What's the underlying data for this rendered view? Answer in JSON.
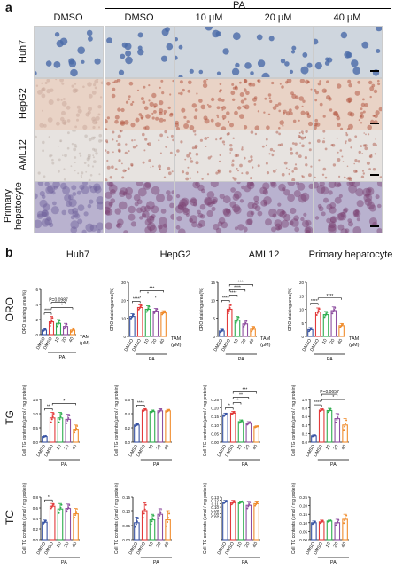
{
  "panel_a": {
    "letter": "a",
    "pa_header": "PA",
    "column_headers": [
      "DMSO",
      "DMSO",
      "10 μM",
      "20 μM",
      "40 μM"
    ],
    "row_labels": [
      "Huh7",
      "HepG2",
      "AML12",
      "Primary hepatocyte"
    ],
    "row_label_line1": "Primary",
    "row_label_line2": "hepatocyte"
  },
  "panel_b": {
    "letter": "b",
    "row_labels": [
      "ORO",
      "TG",
      "TC"
    ],
    "col_titles": [
      "Huh7",
      "HepG2",
      "AML12",
      "Primary hepatocyte"
    ],
    "tam_label": "TAM",
    "tam_unit": "(μM)",
    "pa_label": "PA"
  },
  "colors": {
    "huh7_bg": "#cfd6de",
    "hepg2_bg": "#e9d3c6",
    "aml12_bg": "#e7e3e0",
    "primary_bg": "#b9b2cf",
    "series": [
      "#3853a4",
      "#e23b3b",
      "#2fae4f",
      "#8e4fa0",
      "#f08c2c"
    ]
  },
  "chart_data": [
    {
      "type": "bar",
      "name": "oro-huh7",
      "ylabel": "ORO staining area(%)",
      "ylim": [
        0,
        6
      ],
      "yticks": [
        0,
        2,
        4,
        6
      ],
      "categories": [
        "DMSO",
        "DMSO",
        "10",
        "20",
        "40"
      ],
      "values": [
        0.6,
        1.7,
        1.5,
        1.1,
        0.6
      ],
      "errors": [
        0.2,
        0.7,
        0.5,
        0.4,
        0.3
      ],
      "sig": [
        [
          "****",
          0,
          1
        ],
        [
          "*",
          1,
          4
        ],
        [
          "P=0.0987",
          1,
          3
        ]
      ],
      "tam": true
    },
    {
      "type": "bar",
      "name": "oro-hepg2",
      "ylabel": "ORO staining area(%)",
      "ylim": [
        0,
        30
      ],
      "yticks": [
        0,
        10,
        20,
        30
      ],
      "categories": [
        "DMSO",
        "DMSO",
        "10",
        "20",
        "40"
      ],
      "values": [
        11,
        16,
        15,
        14,
        13
      ],
      "errors": [
        1.5,
        1.5,
        2,
        1.5,
        1.2
      ],
      "sig": [
        [
          "****",
          0,
          1
        ],
        [
          "*",
          1,
          3
        ],
        [
          "***",
          1,
          4
        ]
      ],
      "tam": true
    },
    {
      "type": "bar",
      "name": "oro-aml12",
      "ylabel": "ORO staining area(%)",
      "ylim": [
        0,
        15
      ],
      "yticks": [
        0,
        5,
        10,
        15
      ],
      "categories": [
        "DMSO",
        "DMSO",
        "10",
        "20",
        "40"
      ],
      "values": [
        1.5,
        7.5,
        4.5,
        3.5,
        2
      ],
      "errors": [
        0.5,
        1.5,
        1,
        1,
        0.8
      ],
      "sig": [
        [
          "****",
          0,
          1
        ],
        [
          "****",
          1,
          2
        ],
        [
          "****",
          1,
          3
        ],
        [
          "****",
          1,
          4
        ]
      ],
      "tam": true
    },
    {
      "type": "bar",
      "name": "oro-primary",
      "ylabel": "ORO staining area(%)",
      "ylim": [
        0,
        20
      ],
      "yticks": [
        0,
        5,
        10,
        15,
        20
      ],
      "categories": [
        "DMSO",
        "DMSO",
        "10",
        "20",
        "40"
      ],
      "values": [
        2.5,
        9,
        8,
        9.5,
        4
      ],
      "errors": [
        0.8,
        1.5,
        1.2,
        1.4,
        0.8
      ],
      "sig": [
        [
          "****",
          0,
          1
        ],
        [
          "****",
          1,
          4
        ]
      ],
      "tam": true
    },
    {
      "type": "bar",
      "name": "tg-huh7",
      "ylabel": "Cell TG contents (μmol / mg protein)",
      "ylim": [
        0,
        1.5
      ],
      "yticks": [
        0.0,
        0.5,
        1.0,
        1.5
      ],
      "categories": [
        "DMSO",
        "DMSO",
        "10",
        "20",
        "40"
      ],
      "values": [
        0.2,
        0.85,
        0.85,
        0.8,
        0.45
      ],
      "errors": [
        0.03,
        0.2,
        0.2,
        0.18,
        0.15
      ],
      "sig": [
        [
          "**",
          0,
          1
        ],
        [
          "*",
          1,
          4
        ]
      ]
    },
    {
      "type": "bar",
      "name": "tg-hepg2",
      "ylabel": "Cell TG contents (μmol / mg protein)",
      "ylim": [
        0,
        0.6
      ],
      "yticks": [
        0.0,
        0.2,
        0.4,
        0.6
      ],
      "categories": [
        "DMSO",
        "DMSO",
        "10",
        "20",
        "40"
      ],
      "values": [
        0.24,
        0.45,
        0.43,
        0.44,
        0.44
      ],
      "errors": [
        0.02,
        0.02,
        0.02,
        0.03,
        0.02
      ],
      "sig": [
        [
          "****",
          0,
          1
        ]
      ]
    },
    {
      "type": "bar",
      "name": "tg-aml12",
      "ylabel": "Cell TG contents (μmol / mg protein)",
      "ylim": [
        0,
        0.25
      ],
      "yticks": [
        0.0,
        0.05,
        0.1,
        0.15,
        0.2,
        0.25
      ],
      "categories": [
        "DMSO",
        "DMSO",
        "10",
        "20",
        "40"
      ],
      "values": [
        0.16,
        0.17,
        0.12,
        0.11,
        0.09
      ],
      "errors": [
        0.01,
        0.01,
        0.01,
        0.01,
        0.005
      ],
      "sig": [
        [
          "*",
          0,
          1
        ],
        [
          "**",
          1,
          2
        ],
        [
          "**",
          1,
          3
        ],
        [
          "***",
          1,
          4
        ]
      ]
    },
    {
      "type": "bar",
      "name": "tg-primary",
      "ylabel": "Cell TG contents (μmol / mg protein)",
      "ylim": [
        0,
        1.0
      ],
      "yticks": [
        0.0,
        0.2,
        0.4,
        0.6,
        0.8,
        1.0
      ],
      "categories": [
        "DMSO",
        "DMSO",
        "10",
        "20",
        "40"
      ],
      "values": [
        0.15,
        0.75,
        0.74,
        0.55,
        0.4
      ],
      "errors": [
        0.02,
        0.03,
        0.05,
        0.12,
        0.15
      ],
      "sig": [
        [
          "****",
          0,
          1
        ],
        [
          "*",
          1,
          4
        ],
        [
          "P=0.0657",
          1,
          3
        ]
      ]
    },
    {
      "type": "bar",
      "name": "tc-huh7",
      "ylabel": "Cell TC contents (μmol / mg protein)",
      "ylim": [
        0,
        0.8
      ],
      "yticks": [
        0.0,
        0.2,
        0.4,
        0.6,
        0.8
      ],
      "categories": [
        "DMSO",
        "DMSO",
        "10",
        "20",
        "40"
      ],
      "values": [
        0.33,
        0.63,
        0.58,
        0.59,
        0.49
      ],
      "errors": [
        0.04,
        0.05,
        0.1,
        0.08,
        0.1
      ],
      "sig": [
        [
          "*",
          0,
          1
        ]
      ]
    },
    {
      "type": "bar",
      "name": "tc-hepg2",
      "ylabel": "Cell TC contents (μmol / mg protein)",
      "ylim": [
        0,
        0.15
      ],
      "yticks": [
        0.0,
        0.05,
        0.1,
        0.15
      ],
      "categories": [
        "DMSO",
        "DMSO",
        "10",
        "20",
        "40"
      ],
      "values": [
        0.06,
        0.1,
        0.07,
        0.09,
        0.07
      ],
      "errors": [
        0.02,
        0.03,
        0.02,
        0.02,
        0.03
      ],
      "sig": []
    },
    {
      "type": "bar",
      "name": "tc-aml12",
      "ylabel": "Cell TC contents (μmol / mg protein)",
      "ylim": [
        0,
        0.13
      ],
      "yticks": [
        0.07,
        0.08,
        0.09,
        0.1,
        0.11,
        0.12,
        0.13
      ],
      "categories": [
        "DMSO",
        "DMSO",
        "10",
        "20",
        "40"
      ],
      "values": [
        0.115,
        0.113,
        0.114,
        0.105,
        0.11
      ],
      "errors": [
        0.005,
        0.007,
        0.004,
        0.012,
        0.008
      ],
      "sig": []
    },
    {
      "type": "bar",
      "name": "tc-primary",
      "ylabel": "Cell TC contents (μmol / mg protein)",
      "ylim": [
        0,
        0.25
      ],
      "yticks": [
        0.0,
        0.05,
        0.1,
        0.15,
        0.2,
        0.25
      ],
      "categories": [
        "DMSO",
        "DMSO",
        "10",
        "20",
        "40"
      ],
      "values": [
        0.1,
        0.105,
        0.11,
        0.1,
        0.12
      ],
      "errors": [
        0.01,
        0.01,
        0.005,
        0.02,
        0.03
      ],
      "sig": []
    }
  ]
}
